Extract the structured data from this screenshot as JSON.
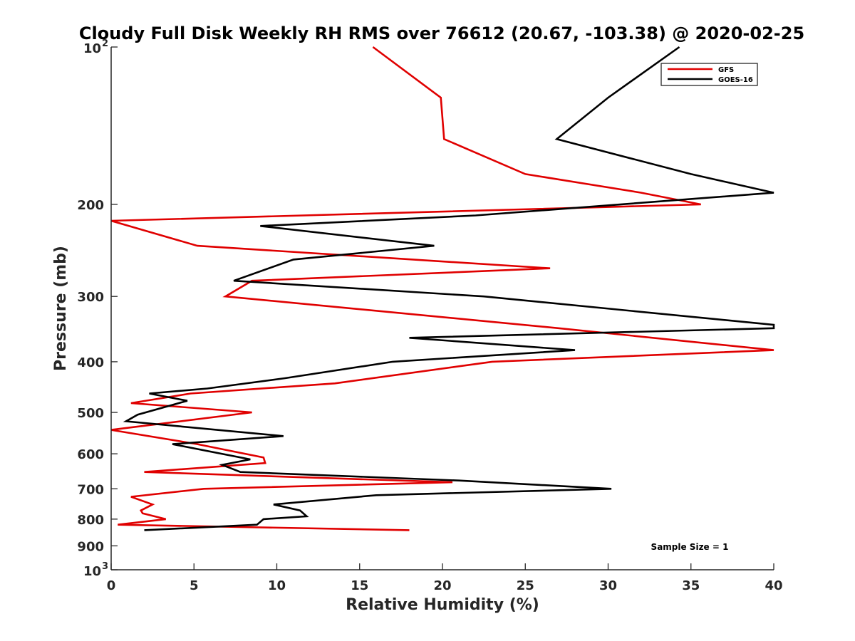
{
  "chart_data": {
    "type": "line",
    "title": "Cloudy Full Disk Weekly RH RMS over 76612 (20.67, -103.38) @ 2020-02-25",
    "xlabel": "Relative Humidity (%)",
    "ylabel": "Pressure (mb)",
    "xlim": [
      0,
      40
    ],
    "ylim": [
      100,
      1000
    ],
    "yscale": "log",
    "y_reversed": true,
    "x_ticks": [
      0,
      5,
      10,
      15,
      20,
      25,
      30,
      35,
      40
    ],
    "x_tick_labels": [
      "0",
      "5",
      "10",
      "15",
      "20",
      "25",
      "30",
      "35",
      "40"
    ],
    "y_ticks": [
      100,
      200,
      300,
      400,
      500,
      600,
      700,
      800,
      900,
      1000
    ],
    "y_tick_labels": [
      {
        "base": "10",
        "exp": "2"
      },
      {
        "base": "200"
      },
      {
        "base": "300"
      },
      {
        "base": "400"
      },
      {
        "base": "500"
      },
      {
        "base": "600"
      },
      {
        "base": "700"
      },
      {
        "base": "800"
      },
      {
        "base": "900"
      },
      {
        "base": "10",
        "exp": "3"
      }
    ],
    "legend_position": "top-right",
    "annotation": "Sample Size = 1",
    "series": [
      {
        "name": "GFS",
        "color": "#e00000",
        "points": [
          [
            15.8,
            100
          ],
          [
            19.9,
            125
          ],
          [
            20.1,
            150
          ],
          [
            25.0,
            175
          ],
          [
            32.0,
            190
          ],
          [
            35.6,
            200
          ],
          [
            0,
            215
          ],
          [
            5.2,
            240
          ],
          [
            26.5,
            265
          ],
          [
            8.5,
            280
          ],
          [
            6.9,
            300
          ],
          [
            27.0,
            345
          ],
          [
            40,
            380
          ],
          [
            23.0,
            400
          ],
          [
            13.5,
            440
          ],
          [
            4.8,
            460
          ],
          [
            1.2,
            480
          ],
          [
            8.5,
            500
          ],
          [
            0,
            540
          ],
          [
            5.2,
            575
          ],
          [
            9.2,
            610
          ],
          [
            9.3,
            625
          ],
          [
            2.0,
            650
          ],
          [
            20.6,
            680
          ],
          [
            5.6,
            700
          ],
          [
            1.2,
            725
          ],
          [
            2.5,
            750
          ],
          [
            1.8,
            770
          ],
          [
            1.9,
            780
          ],
          [
            3.3,
            800
          ],
          [
            0.4,
            820
          ],
          [
            18.0,
            840
          ]
        ]
      },
      {
        "name": "GOES-16",
        "color": "#000000",
        "points": [
          [
            34.3,
            100
          ],
          [
            30.0,
            125
          ],
          [
            26.9,
            150
          ],
          [
            35.0,
            175
          ],
          [
            40,
            190
          ],
          [
            22.0,
            210
          ],
          [
            9.0,
            220
          ],
          [
            19.5,
            240
          ],
          [
            11.0,
            255
          ],
          [
            7.4,
            280
          ],
          [
            22.5,
            300
          ],
          [
            40,
            340
          ],
          [
            40,
            345
          ],
          [
            18.0,
            360
          ],
          [
            28.0,
            380
          ],
          [
            17.0,
            400
          ],
          [
            10.5,
            430
          ],
          [
            5.8,
            450
          ],
          [
            2.3,
            460
          ],
          [
            4.6,
            475
          ],
          [
            1.6,
            505
          ],
          [
            0.9,
            520
          ],
          [
            10.4,
            555
          ],
          [
            3.7,
            575
          ],
          [
            8.4,
            615
          ],
          [
            6.7,
            630
          ],
          [
            7.8,
            650
          ],
          [
            21.0,
            675
          ],
          [
            30.2,
            700
          ],
          [
            16.0,
            720
          ],
          [
            9.8,
            750
          ],
          [
            11.4,
            770
          ],
          [
            11.8,
            790
          ],
          [
            9.2,
            800
          ],
          [
            8.8,
            820
          ],
          [
            2.0,
            840
          ]
        ]
      }
    ]
  }
}
